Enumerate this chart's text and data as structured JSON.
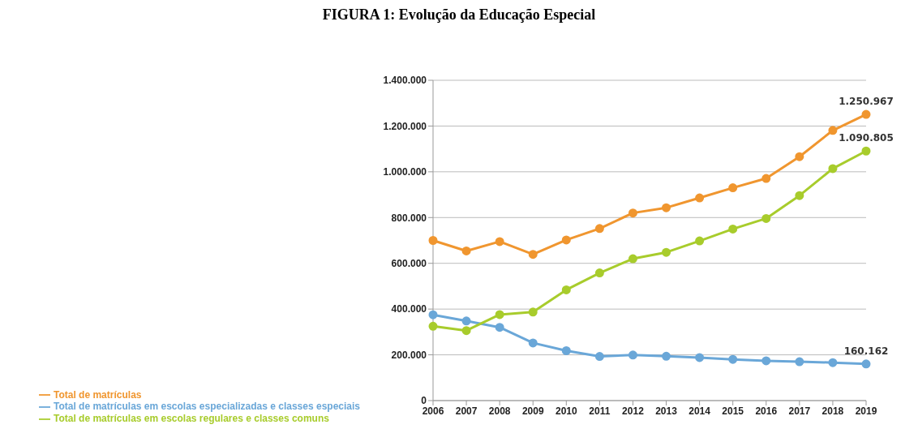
{
  "chart_data": {
    "type": "line",
    "title": "FIGURA 1: Evolução da Educação Especial",
    "categories": [
      "2006",
      "2007",
      "2008",
      "2009",
      "2010",
      "2011",
      "2012",
      "2013",
      "2014",
      "2015",
      "2016",
      "2017",
      "2018",
      "2019"
    ],
    "series": [
      {
        "name": "Total de matrículas",
        "color": "#f0962f",
        "values": [
          700000,
          654000,
          695000,
          639000,
          702000,
          752000,
          820000,
          843000,
          886000,
          930000,
          971000,
          1066000,
          1181000,
          1250967
        ],
        "value_labels": [
          null,
          null,
          null,
          null,
          null,
          null,
          null,
          null,
          null,
          null,
          null,
          null,
          null,
          "1.250.967"
        ]
      },
      {
        "name": "Total de matrículas em escolas especializadas e classes especiais",
        "color": "#6aa7d8",
        "values": [
          375000,
          348000,
          320000,
          252000,
          218000,
          193000,
          199000,
          194000,
          188000,
          180000,
          174000,
          170000,
          166000,
          160162
        ],
        "value_labels": [
          null,
          null,
          null,
          null,
          null,
          null,
          null,
          null,
          null,
          null,
          null,
          null,
          null,
          "160.162"
        ]
      },
      {
        "name": "Total de matrículas em escolas regulares e classes comuns",
        "color": "#a8cc2c",
        "values": [
          325000,
          306000,
          376000,
          387000,
          484000,
          558000,
          620000,
          648000,
          698000,
          750000,
          796000,
          896000,
          1014000,
          1090805
        ],
        "value_labels": [
          null,
          null,
          null,
          null,
          null,
          null,
          null,
          null,
          null,
          null,
          null,
          null,
          null,
          "1.090.805"
        ]
      }
    ],
    "ylim": [
      0,
      1400000
    ],
    "yticks": [
      {
        "value": 0,
        "label": "0"
      },
      {
        "value": 200000,
        "label": "200.000"
      },
      {
        "value": 400000,
        "label": "400.000"
      },
      {
        "value": 600000,
        "label": "600.000"
      },
      {
        "value": 800000,
        "label": "800.000"
      },
      {
        "value": 1000000,
        "label": "1.000.000"
      },
      {
        "value": 1200000,
        "label": "1.200.000"
      },
      {
        "value": 1400000,
        "label": "1.400.000"
      }
    ],
    "grid": "y",
    "legend": "bottom",
    "marker": "circle",
    "line_style": "solid"
  }
}
